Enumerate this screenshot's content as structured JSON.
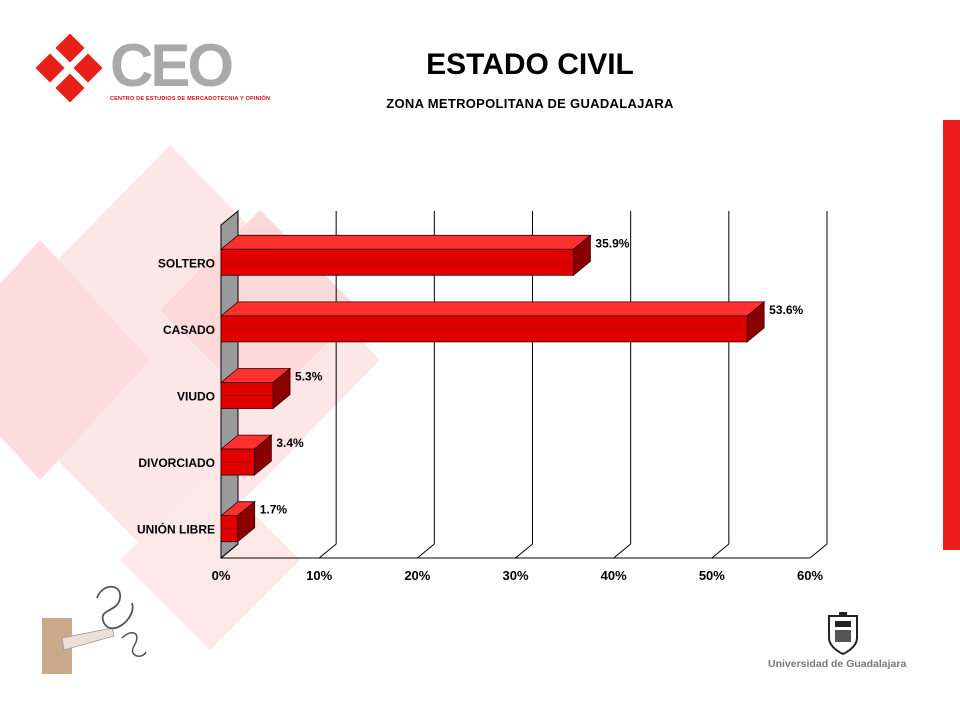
{
  "header": {
    "title": "ESTADO CIVIL",
    "subtitle": "ZONA METROPOLITANA DE GUADALAJARA"
  },
  "logo": {
    "text": "CEO",
    "tagline": "CENTRO DE ESTUDIOS DE MERCADOTECNIA Y OPINIÓN"
  },
  "footer": {
    "university": "Universidad de Guadalajara"
  },
  "colors": {
    "bar": "#e00000",
    "bar_dark": "#8a0000",
    "stripe": "#ee1c1c",
    "decor": "#fbe3e3"
  },
  "chart_data": {
    "type": "bar",
    "orientation": "horizontal",
    "categories": [
      "SOLTERO",
      "CASADO",
      "VIUDO",
      "DIVORCIADO",
      "UNIÓN LIBRE"
    ],
    "values": [
      35.9,
      53.6,
      5.3,
      3.4,
      1.7
    ],
    "value_labels": [
      "35.9%",
      "53.6%",
      "5.3%",
      "3.4%",
      "1.7%"
    ],
    "x_ticks": [
      "0%",
      "10%",
      "20%",
      "30%",
      "40%",
      "50%",
      "60%"
    ],
    "xlim": [
      0,
      60
    ],
    "grid": true,
    "legend": "none"
  }
}
